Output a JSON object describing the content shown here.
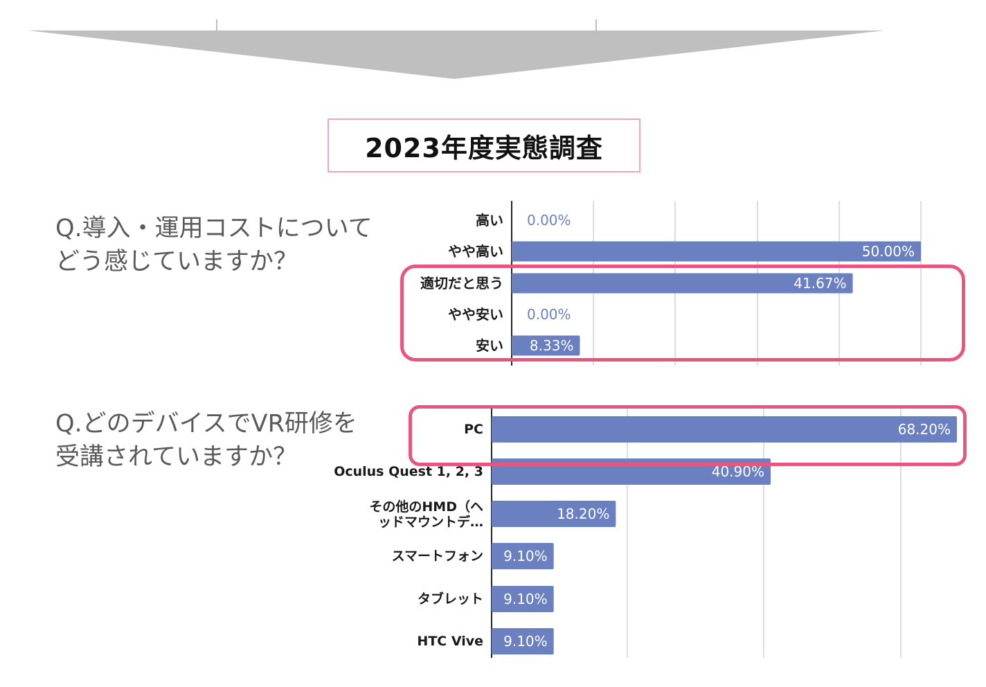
{
  "page_title": "2023年度実態調査",
  "questions": {
    "q1": "Q.導入・運用コストについて\nどう感じていますか？",
    "q2": "Q.どのデバイスでVR研修を\n受講されていますか？"
  },
  "colors": {
    "bar": "#6a80c0",
    "highlight": "#e8567f",
    "title_border": "#f3a3bd",
    "arrow": "#bfbfbf",
    "zero_label": "#6a80c0"
  },
  "chart_data": [
    {
      "type": "bar",
      "orientation": "horizontal",
      "categories": [
        "高い",
        "やや高い",
        "適切だと思う",
        "やや安い",
        "安い"
      ],
      "values": [
        0.0,
        50.0,
        41.67,
        0.0,
        8.33
      ],
      "value_labels": [
        "0.00%",
        "50.00%",
        "41.67%",
        "0.00%",
        "8.33%"
      ],
      "xlim": [
        0,
        50
      ],
      "grid": true,
      "highlighted_categories": [
        "適切だと思う",
        "やや安い",
        "安い"
      ]
    },
    {
      "type": "bar",
      "orientation": "horizontal",
      "categories": [
        "PC",
        "Oculus Quest 1, 2, 3",
        "その他のHMD（ヘッドマウントデ…",
        "スマートフォン",
        "タブレット",
        "HTC Vive"
      ],
      "category_lines": [
        [
          "PC"
        ],
        [
          "Oculus Quest 1, 2, 3"
        ],
        [
          "その他のHMD（ヘ",
          "ッドマウントデ…"
        ],
        [
          "スマートフォン"
        ],
        [
          "タブレット"
        ],
        [
          "HTC Vive"
        ]
      ],
      "values": [
        68.2,
        40.9,
        18.2,
        9.1,
        9.1,
        9.1
      ],
      "value_labels": [
        "68.20%",
        "40.90%",
        "18.20%",
        "9.10%",
        "9.10%",
        "9.10%"
      ],
      "xlim": [
        0,
        68.2
      ],
      "grid": true,
      "highlighted_categories": [
        "PC"
      ]
    }
  ]
}
